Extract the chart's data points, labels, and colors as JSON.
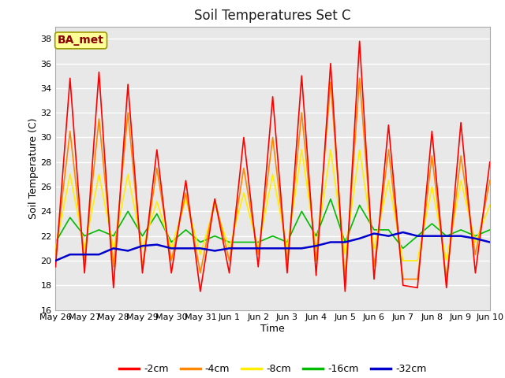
{
  "title": "Soil Temperatures Set C",
  "xlabel": "Time",
  "ylabel": "Soil Temperature (C)",
  "ylim": [
    16,
    39
  ],
  "yticks": [
    16,
    18,
    20,
    22,
    24,
    26,
    28,
    30,
    32,
    34,
    36,
    38
  ],
  "fig_bg_color": "#ffffff",
  "plot_bg_color": "#e8e8e8",
  "annotation_text": "BA_met",
  "annotation_color": "#8b0000",
  "annotation_bg": "#ffff99",
  "annotation_edge": "#999900",
  "series_colors": {
    "-2cm": "#ff0000",
    "-4cm": "#ff8800",
    "-8cm": "#ffee00",
    "-16cm": "#00bb00",
    "-32cm": "#0000cc"
  },
  "x_tick_labels": [
    "May 26",
    "May 27",
    "May 28",
    "May 29",
    "May 30",
    "May 31",
    "Jun 1",
    "Jun 2",
    "Jun 3",
    "Jun 4",
    "Jun 5",
    "Jun 6",
    "Jun 7",
    "Jun 8",
    "Jun 9",
    "Jun 10"
  ],
  "data_2cm": [
    19.5,
    34.8,
    19.0,
    35.3,
    17.8,
    34.3,
    19.0,
    29.0,
    19.0,
    26.5,
    17.5,
    25.0,
    19.0,
    30.0,
    19.5,
    33.3,
    19.0,
    35.0,
    18.8,
    36.0,
    17.5,
    37.8,
    18.5,
    31.0,
    18.0,
    17.8,
    30.5,
    17.8,
    31.2,
    19.0,
    28.0
  ],
  "data_4cm": [
    20.5,
    30.5,
    20.0,
    31.5,
    19.5,
    32.0,
    19.5,
    27.5,
    20.0,
    25.5,
    19.0,
    25.0,
    20.0,
    27.5,
    20.5,
    30.0,
    20.0,
    32.0,
    20.0,
    34.5,
    18.5,
    34.8,
    19.5,
    29.0,
    18.5,
    18.5,
    28.5,
    18.5,
    28.5,
    20.5,
    26.5
  ],
  "data_8cm": [
    21.0,
    27.0,
    21.0,
    27.0,
    21.0,
    27.0,
    21.0,
    24.8,
    21.0,
    25.0,
    20.5,
    24.5,
    21.0,
    25.5,
    21.0,
    27.0,
    21.0,
    29.0,
    21.0,
    29.0,
    20.5,
    29.0,
    21.0,
    26.5,
    20.0,
    20.0,
    26.0,
    20.0,
    26.5,
    21.5,
    24.5
  ],
  "data_16cm": [
    21.5,
    23.5,
    22.0,
    22.5,
    22.0,
    24.0,
    22.0,
    23.8,
    21.5,
    22.5,
    21.5,
    22.0,
    21.5,
    21.5,
    21.5,
    22.0,
    21.5,
    24.0,
    22.0,
    25.0,
    21.5,
    24.5,
    22.5,
    22.5,
    21.0,
    22.0,
    23.0,
    22.0,
    22.5,
    22.0,
    22.5
  ],
  "data_32cm": [
    20.0,
    20.5,
    20.5,
    20.5,
    21.0,
    20.8,
    21.2,
    21.3,
    21.0,
    21.0,
    21.0,
    20.8,
    21.0,
    21.0,
    21.0,
    21.0,
    21.0,
    21.0,
    21.2,
    21.5,
    21.5,
    21.8,
    22.2,
    22.0,
    22.3,
    22.0,
    22.0,
    22.0,
    22.0,
    21.8,
    21.5
  ],
  "grid_color": "#ffffff",
  "spine_color": "#aaaaaa",
  "title_fontsize": 12,
  "label_fontsize": 9,
  "tick_fontsize": 8,
  "linewidth": 1.2,
  "legend_fontsize": 9
}
